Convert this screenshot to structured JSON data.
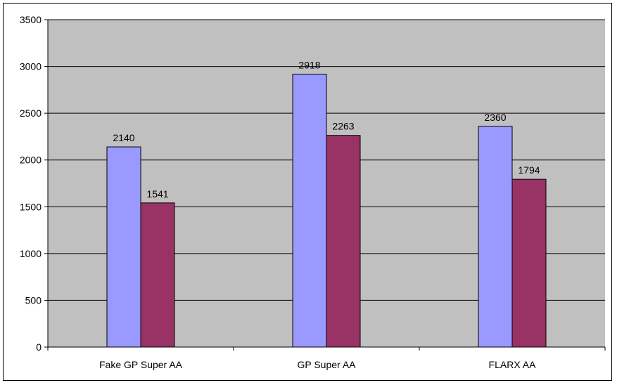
{
  "chart_data": {
    "type": "bar",
    "categories": [
      "Fake GP Super AA",
      "GP Super AA",
      "FLARX AA"
    ],
    "series": [
      {
        "values": [
          2140,
          2918,
          2360
        ],
        "color": "#9999ff"
      },
      {
        "values": [
          1541,
          2263,
          1794
        ],
        "color": "#993366"
      }
    ],
    "ylim": [
      0,
      3500
    ],
    "yticks": [
      0,
      500,
      1000,
      1500,
      2000,
      2500,
      3000,
      3500
    ],
    "grid": true,
    "plot_background": "#c0c0c0",
    "data_labels": true,
    "legend": "none"
  }
}
